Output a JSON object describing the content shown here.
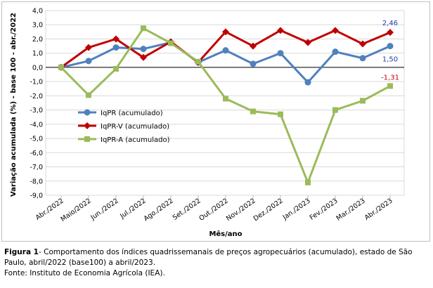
{
  "chart_data": {
    "type": "line",
    "categories": [
      "Abr./2022",
      "Maio/2022",
      "Jun./2022",
      "Jul./2022",
      "Ago./2022",
      "Set./2022",
      "Out./2022",
      "Nov./2022",
      "Dez./2022",
      "Jan./2023",
      "Fev./2023",
      "Mar./2023",
      "Abr./2023"
    ],
    "series": [
      {
        "name": "IqPR (acumulado)",
        "color": "#4f81bd",
        "marker": "circle",
        "values": [
          0.0,
          0.45,
          1.4,
          1.3,
          1.75,
          0.35,
          1.2,
          0.25,
          1.0,
          -1.05,
          1.1,
          0.65,
          1.5
        ]
      },
      {
        "name": "IqPR-V  (acumulado)",
        "color": "#c00000",
        "marker": "diamond",
        "values": [
          0.0,
          1.4,
          2.0,
          0.7,
          1.8,
          0.35,
          2.5,
          1.5,
          2.6,
          1.75,
          2.6,
          1.65,
          2.46
        ]
      },
      {
        "name": "IqPR-A  (acumulado)",
        "color": "#9bbb59",
        "marker": "square",
        "values": [
          0.0,
          -1.95,
          -0.1,
          2.75,
          1.7,
          0.4,
          -2.2,
          -3.1,
          -3.3,
          -8.1,
          -3.0,
          -2.35,
          -1.31
        ]
      }
    ],
    "data_labels": [
      {
        "series": 0,
        "index": 12,
        "text": "1,50",
        "color": "#1f3ea8"
      },
      {
        "series": 1,
        "index": 12,
        "text": "2,46",
        "color": "#1f3ea8"
      },
      {
        "series": 2,
        "index": 12,
        "text": "-1,31",
        "color": "#c00000"
      }
    ],
    "y_ticks": [
      "4,0",
      "3,0",
      "2,0",
      "1,0",
      "0,0",
      "-1,0",
      "-2,0",
      "-3,0",
      "-4,0",
      "-5,0",
      "-6,0",
      "-7,0",
      "-8,0",
      "-9,0"
    ],
    "ylim": [
      -9,
      4
    ],
    "ylabel": "Variação acumulada (%) - base 100 - abr./2022",
    "xlabel": "Mês/ano",
    "grid": true,
    "legend_position": "left-middle"
  },
  "caption": {
    "figure_label": "Figura 1",
    "text": "- Comportamento dos índices quadrissemanais de preços agropecuários (acumulado), estado de São Paulo, abril/2022 (base100) a abril/2023.",
    "source": "Fonte: Instituto de Economia Agrícola (IEA)."
  }
}
